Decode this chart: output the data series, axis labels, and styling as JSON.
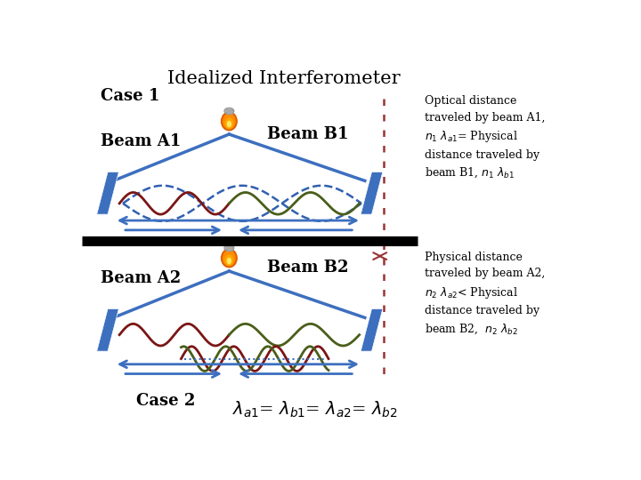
{
  "title": "Idealized Interferometer",
  "title_fontsize": 15,
  "bg_color": "#ffffff",
  "case1_label": "Case 1",
  "case2_label": "Case 2",
  "beam_a1_label": "Beam A1",
  "beam_b1_label": "Beam B1",
  "beam_a2_label": "Beam A2",
  "beam_b2_label": "Beam B2",
  "wave_color_a": "#7B1515",
  "wave_color_b": "#4A5E1A",
  "wave_color_envelope": "#3060B0",
  "mirror_color": "#3D6FBF",
  "arrow_color": "#3D6FBF",
  "red_dotted_color": "#993333",
  "red_arrow_color": "#993333",
  "divider_color": "#000000",
  "source_orange": "#FF8C00",
  "source_yellow": "#FFD700",
  "source_gray": "#AAAAAA"
}
